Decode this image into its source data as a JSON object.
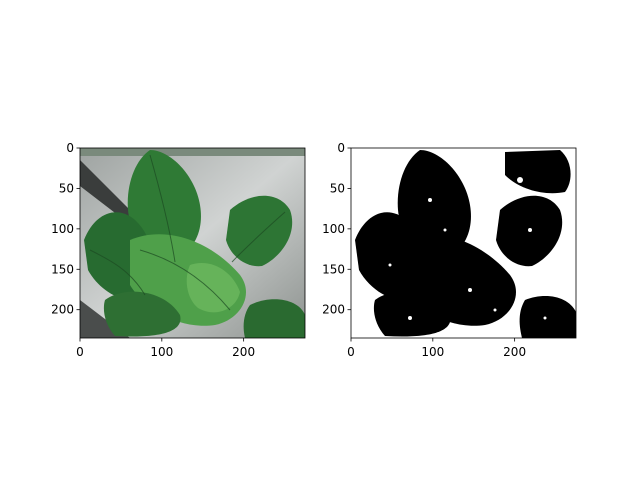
{
  "chart_data": [
    {
      "type": "image",
      "name": "left-panel",
      "description_color": "original color photo",
      "xlim": [
        0,
        275
      ],
      "ylim": [
        235,
        0
      ],
      "xticks": [
        0,
        100,
        200
      ],
      "yticks": [
        0,
        50,
        100,
        150,
        200
      ],
      "xlabel": "",
      "ylabel": "",
      "title": ""
    },
    {
      "type": "image",
      "name": "right-panel",
      "description_color": "binary mask",
      "xlim": [
        0,
        275
      ],
      "ylim": [
        235,
        0
      ],
      "xticks": [
        0,
        100,
        200
      ],
      "yticks": [
        0,
        50,
        100,
        150,
        200
      ],
      "xlabel": "",
      "ylabel": "",
      "title": ""
    }
  ],
  "colors": {
    "leaf_dark": "#1f4f25",
    "leaf_mid": "#2f7a35",
    "leaf_light": "#4fa04a",
    "background_grey": "#b9bcbb",
    "mask_fg": "#000000",
    "mask_bg": "#ffffff"
  }
}
